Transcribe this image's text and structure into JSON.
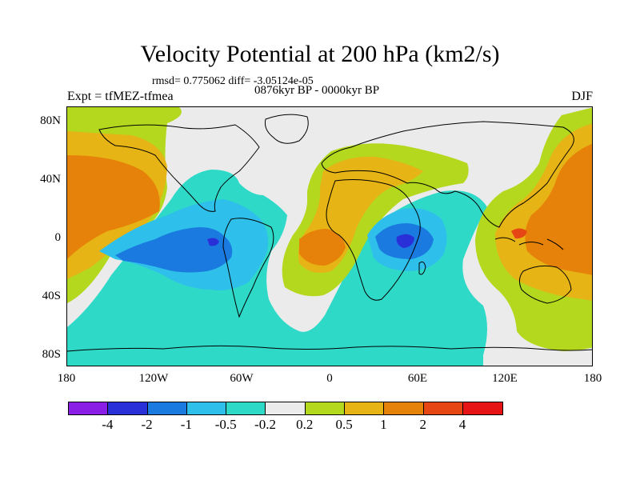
{
  "title": "Velocity Potential at 200 hPa (km2/s)",
  "stats": "rmsd= 0.775062 diff= -3.05124e-05",
  "subtitle": "0876kyr BP - 0000kyr BP",
  "experiment": "Expt = tfMEZ-tfmea",
  "season": "DJF",
  "lat_labels": [
    "80N",
    "40N",
    "0",
    "40S",
    "80S"
  ],
  "lon_labels": [
    "180",
    "120W",
    "60W",
    "0",
    "60E",
    "120E",
    "180"
  ],
  "colorbar": {
    "labels": [
      "-4",
      "-2",
      "-1",
      "-0.5",
      "-0.2",
      "0.2",
      "0.5",
      "1",
      "2",
      "4"
    ],
    "colors": [
      "#8a1ee6",
      "#2a30d8",
      "#1a7ae0",
      "#2ec0ea",
      "#2ed9c8",
      "#ebebeb",
      "#b4d81e",
      "#e6b414",
      "#e6820a",
      "#e64614",
      "#e61414"
    ]
  },
  "palette": {
    "neutral": "#ebebeb",
    "neg_weak": "#2ed9c8",
    "neg_mid": "#2ec0ea",
    "neg_strong": "#1a7ae0",
    "neg_core": "#2a30d8",
    "pos_weak": "#b4d81e",
    "pos_mid": "#e6b414",
    "pos_strong": "#e6820a",
    "pos_core": "#e64614",
    "coast": "#000000"
  }
}
